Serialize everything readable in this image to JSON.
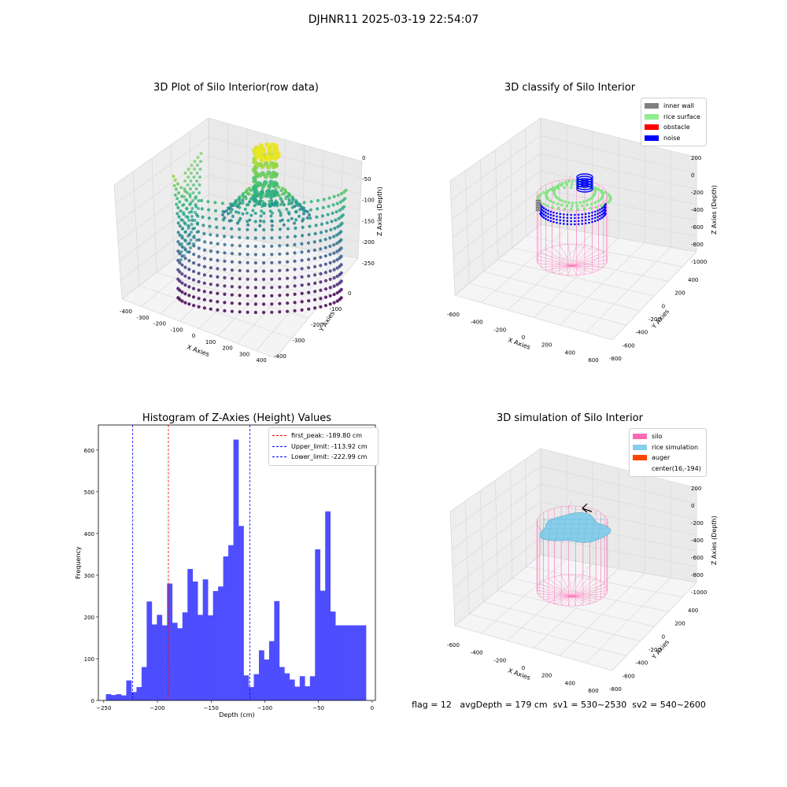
{
  "suptitle": "DJHNR11 2025-03-19 22:54:07",
  "status_line": "flag = 12   avgDepth = 179 cm  sv1 = 530~2530  sv2 = 540~2600",
  "colors": {
    "viridis_low": "#440154",
    "viridis_mid": "#21918c",
    "viridis_high": "#fde725",
    "silo": "#ff69b4",
    "hist_bar": "#4444ff"
  },
  "chart_data": [
    {
      "type": "scatter",
      "title": "3D Plot of Silo Interior(row data)",
      "xlabel": "X Axies",
      "ylabel": "Y Axies",
      "zlabel": "Z Axies (Depth)",
      "x_ticks": [
        "-400",
        "-300",
        "-200",
        "-100",
        "0",
        "100",
        "200",
        "300",
        "400"
      ],
      "y_ticks": [
        "0",
        "-100",
        "-200",
        "-300",
        "-400"
      ],
      "z_ticks": [
        "0",
        "-50",
        "-100",
        "-150",
        "-200",
        "-250"
      ],
      "colormap": "viridis"
    },
    {
      "type": "scatter",
      "title": "3D classify of Silo Interior",
      "xlabel": "X Axies",
      "ylabel": "Y Axies",
      "zlabel": "Z Axies (Depth)",
      "x_ticks": [
        "-600",
        "-400",
        "-200",
        "0",
        "200",
        "400",
        "600"
      ],
      "y_ticks": [
        "400",
        "200",
        "0",
        "-200",
        "-400",
        "-600",
        "-800"
      ],
      "z_ticks": [
        "200",
        "0",
        "-200",
        "-400",
        "-600",
        "-800",
        "-1000"
      ],
      "legend": [
        {
          "label": "inner wall",
          "color": "#808080"
        },
        {
          "label": "rice surface",
          "color": "#90ee90"
        },
        {
          "label": "obstacle",
          "color": "#ff0000"
        },
        {
          "label": "noise",
          "color": "#0000ff"
        }
      ]
    },
    {
      "type": "bar",
      "title": "Histogram of Z-Axies (Height) Values",
      "xlabel": "Depth (cm)",
      "ylabel": "Frequency",
      "xlim": [
        -255,
        3
      ],
      "ylim": [
        0,
        660
      ],
      "x_ticks": [
        -250,
        -200,
        -150,
        -100,
        -50,
        0
      ],
      "x_tick_labels": [
        "−250",
        "−200",
        "−150",
        "−100",
        "−50",
        "0"
      ],
      "y_ticks": [
        0,
        100,
        200,
        300,
        400,
        500,
        600
      ],
      "bin_start": -248,
      "bin_width": 4.75,
      "values": [
        15,
        13,
        15,
        12,
        48,
        20,
        32,
        80,
        237,
        182,
        205,
        180,
        280,
        186,
        173,
        211,
        315,
        285,
        205,
        290,
        204,
        262,
        273,
        345,
        372,
        625,
        418,
        60,
        32,
        63,
        120,
        98,
        142,
        238,
        80,
        65,
        50,
        33,
        58,
        34,
        58,
        362,
        263,
        453,
        213,
        180,
        180,
        180,
        180,
        180,
        180
      ],
      "vlines": [
        {
          "x": -189.8,
          "color": "#ff0000",
          "label": "first_peak: -189.80 cm"
        },
        {
          "x": -113.92,
          "color": "#0000ff",
          "label": "Upper_limit: -113.92 cm"
        },
        {
          "x": -222.99,
          "color": "#0000ff",
          "label": "Lower_limit: -222.99 cm"
        }
      ]
    },
    {
      "type": "scatter",
      "title": "3D simulation of Silo Interior",
      "xlabel": "X Axies",
      "ylabel": "Y Axies",
      "zlabel": "Z Axies (Depth)",
      "x_ticks": [
        "-600",
        "-400",
        "-200",
        "0",
        "200",
        "400",
        "600"
      ],
      "y_ticks": [
        "400",
        "200",
        "0",
        "-200",
        "-400",
        "-600",
        "-800"
      ],
      "z_ticks": [
        "200",
        "0",
        "-200",
        "-400",
        "-600",
        "-800",
        "-1000"
      ],
      "legend": [
        {
          "label": "silo",
          "color": "#ff69b4"
        },
        {
          "label": "rice simulation",
          "color": "#87ceeb"
        },
        {
          "label": "auger",
          "color": "#ff4500"
        },
        {
          "label": "center(16,-194)",
          "color": ""
        }
      ]
    }
  ]
}
